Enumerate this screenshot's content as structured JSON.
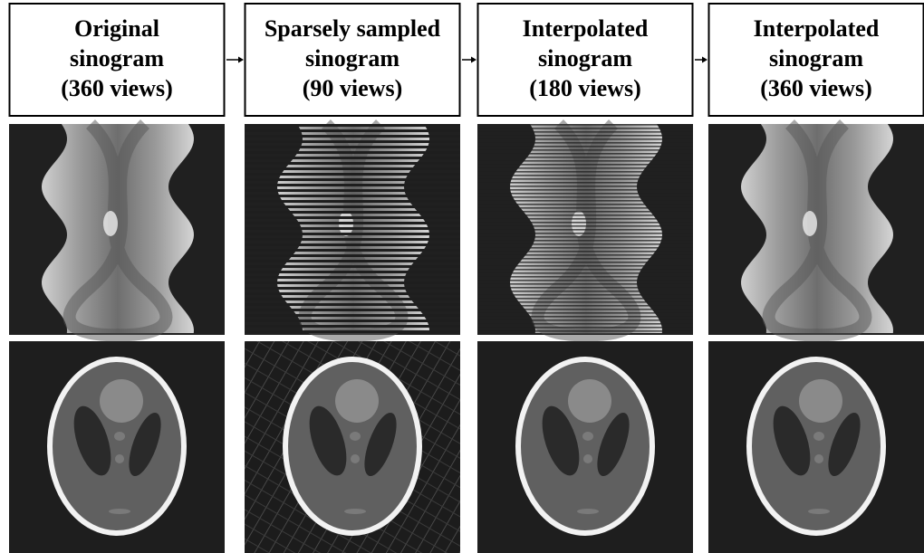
{
  "panels": [
    {
      "title": [
        "Original",
        "sinogram",
        "(360 views)"
      ]
    },
    {
      "title": [
        "Sparsely sampled",
        "sinogram",
        "(90 views)"
      ]
    },
    {
      "title": [
        "Interpolated",
        "sinogram",
        "(180 views)"
      ]
    },
    {
      "title": [
        "Interpolated",
        "sinogram",
        "(360 views)"
      ]
    }
  ]
}
